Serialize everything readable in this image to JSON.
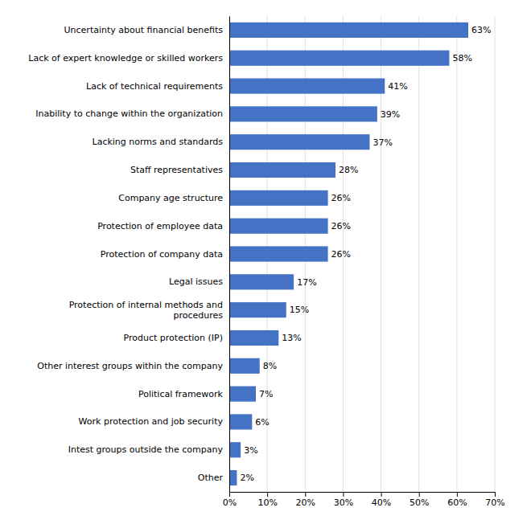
{
  "chart_data": {
    "type": "bar",
    "orientation": "horizontal",
    "categories": [
      "Other",
      "Intest groups outside the company",
      "Work protection and job security",
      "Political framework",
      "Other interest groups within the company",
      "Product protection (IP)",
      "Protection of internal methods and\nprocedures",
      "Legal issues",
      "Protection of company data",
      "Protection of employee data",
      "Company age structure",
      "Staff representatives",
      "Lacking norms and standards",
      "Inability to change within the organization",
      "Lack of technical requirements",
      "Lack of expert knowledge or skilled workers",
      "Uncertainty about financial benefits"
    ],
    "values": [
      2,
      3,
      6,
      7,
      8,
      13,
      15,
      17,
      26,
      26,
      26,
      28,
      37,
      39,
      41,
      58,
      63
    ],
    "value_labels": [
      "2%",
      "3%",
      "6%",
      "7%",
      "8%",
      "13%",
      "15%",
      "17%",
      "26%",
      "26%",
      "26%",
      "28%",
      "37%",
      "39%",
      "41%",
      "58%",
      "63%"
    ],
    "data_labels": true,
    "color": "#4472C4",
    "xlim": [
      0,
      70
    ],
    "xticks": [
      {
        "value": 0,
        "label": "0%"
      },
      {
        "value": 10,
        "label": "10%"
      },
      {
        "value": 20,
        "label": "20%"
      },
      {
        "value": 30,
        "label": "30%"
      },
      {
        "value": 40,
        "label": "40%"
      },
      {
        "value": 50,
        "label": "50%"
      },
      {
        "value": 60,
        "label": "60%"
      },
      {
        "value": 70,
        "label": "70%"
      }
    ],
    "grid": true
  }
}
